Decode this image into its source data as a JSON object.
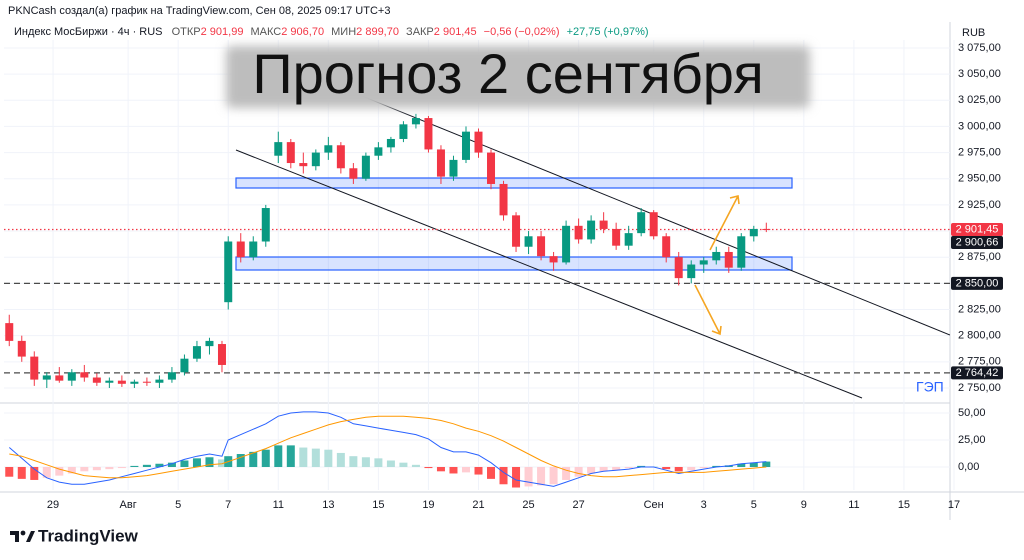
{
  "header": {
    "attribution": "PKNCash создал(а) график на TradingView.com, Сен 08, 2025 09:17 UTC+3",
    "symbol": "Индекс МосБиржи · 4ч · RUS",
    "ohlc": [
      {
        "label": "ОТКР",
        "value": "2 901,99"
      },
      {
        "label": "МАКС",
        "value": "2 906,70"
      },
      {
        "label": "МИН",
        "value": "2 899,70"
      },
      {
        "label": "ЗАКР",
        "value": "2 901,45"
      }
    ],
    "change": "−0,56 (−0,02%)",
    "change_since": "+27,75 (+0,97%)",
    "currency": "RUB"
  },
  "footer": {
    "brand": "TradingView"
  },
  "chart_data": [
    {
      "type": "candlestick",
      "title": "Прогноз 2 сентября",
      "annotation": "ГЭП",
      "up_color": "#089981",
      "down_color": "#f23645",
      "grid": true,
      "x": [
        -1.75,
        -1.25,
        -0.75,
        -0.25,
        0.25,
        0.75,
        1.25,
        1.75,
        2.25,
        2.75,
        3.25,
        3.75,
        4.25,
        4.75,
        5.25,
        5.75,
        6.25,
        6.75,
        7,
        7.5,
        8,
        8.5,
        9,
        9.5,
        10,
        10.5,
        11,
        11.5,
        12,
        12.5,
        13,
        13.5,
        14,
        14.5,
        15,
        15.5,
        16,
        16.5,
        17,
        17.5,
        18,
        18.5,
        19,
        19.5,
        20,
        20.5,
        21,
        21.5,
        22,
        22.5,
        23,
        23.5,
        24,
        24.5,
        25,
        25.5,
        26,
        26.5,
        27,
        27.5,
        28,
        28.5
      ],
      "open": [
        2812,
        2795,
        2780,
        2758,
        2762,
        2757,
        2765,
        2760,
        2755,
        2757,
        2754,
        2756,
        2755,
        2758,
        2765,
        2778,
        2790,
        2792,
        2832,
        2890,
        2875,
        2890,
        2972,
        2985,
        2965,
        2962,
        2975,
        2982,
        2960,
        2950,
        2972,
        2980,
        2988,
        3002,
        3008,
        2978,
        2952,
        2968,
        2995,
        2975,
        2945,
        2915,
        2885,
        2895,
        2876,
        2870,
        2905,
        2892,
        2910,
        2902,
        2886,
        2898,
        2918,
        2895,
        2875,
        2855,
        2868,
        2872,
        2880,
        2865,
        2895,
        2902
      ],
      "high": [
        2820,
        2800,
        2785,
        2765,
        2770,
        2768,
        2772,
        2764,
        2760,
        2762,
        2758,
        2760,
        2762,
        2770,
        2782,
        2795,
        2798,
        2795,
        2895,
        2898,
        2895,
        2925,
        2995,
        2988,
        2975,
        2978,
        2990,
        2985,
        2965,
        2975,
        2985,
        2990,
        3005,
        3012,
        3010,
        2982,
        2972,
        3000,
        2998,
        2978,
        2948,
        2918,
        2900,
        2900,
        2880,
        2910,
        2912,
        2915,
        2918,
        2908,
        2905,
        2922,
        2920,
        2898,
        2880,
        2872,
        2875,
        2885,
        2885,
        2898,
        2905,
        2908
      ],
      "low": [
        2790,
        2775,
        2752,
        2750,
        2755,
        2752,
        2756,
        2752,
        2750,
        2751,
        2750,
        2752,
        2750,
        2755,
        2762,
        2775,
        2782,
        2765,
        2825,
        2870,
        2872,
        2885,
        2965,
        2960,
        2955,
        2958,
        2968,
        2955,
        2945,
        2948,
        2968,
        2975,
        2985,
        2998,
        2975,
        2945,
        2948,
        2965,
        2970,
        2940,
        2910,
        2880,
        2878,
        2872,
        2862,
        2868,
        2888,
        2888,
        2898,
        2882,
        2882,
        2895,
        2892,
        2870,
        2848,
        2850,
        2860,
        2868,
        2860,
        2862,
        2890,
        2899
      ],
      "close": [
        2795,
        2780,
        2758,
        2762,
        2757,
        2765,
        2760,
        2755,
        2757,
        2754,
        2756,
        2755,
        2758,
        2765,
        2778,
        2790,
        2795,
        2772,
        2890,
        2875,
        2890,
        2922,
        2985,
        2965,
        2962,
        2975,
        2982,
        2960,
        2950,
        2972,
        2980,
        2988,
        3002,
        3008,
        2978,
        2952,
        2968,
        2995,
        2975,
        2945,
        2915,
        2885,
        2895,
        2876,
        2870,
        2905,
        2892,
        2910,
        2902,
        2886,
        2898,
        2918,
        2895,
        2875,
        2855,
        2868,
        2872,
        2880,
        2865,
        2895,
        2902,
        2901.45
      ],
      "xlim": [
        -1.96,
        35.84
      ],
      "xticks": [
        {
          "value": 0,
          "label": "29"
        },
        {
          "value": 3,
          "label": "Авг"
        },
        5,
        7,
        {
          "value": 9,
          "label": "11"
        },
        {
          "value": 11,
          "label": "13"
        },
        {
          "value": 13,
          "label": "15"
        },
        {
          "value": 15,
          "label": "19"
        },
        {
          "value": 17,
          "label": "21"
        },
        {
          "value": 19,
          "label": "25"
        },
        {
          "value": 21,
          "label": "27"
        },
        {
          "value": 24,
          "label": "Сен"
        },
        {
          "value": 26,
          "label": "3"
        },
        {
          "value": 28,
          "label": "5"
        },
        {
          "value": 30,
          "label": "9"
        },
        {
          "value": 32,
          "label": "11"
        },
        {
          "value": 34,
          "label": "15"
        },
        {
          "value": 36,
          "label": "17"
        }
      ],
      "ylim": [
        2736.6,
        3082.6
      ],
      "yticks": [
        {
          "value": 3075,
          "label": "3 075,00"
        },
        {
          "value": 3050,
          "label": "3 050,00"
        },
        {
          "value": 3025,
          "label": "3 025,00"
        },
        {
          "value": 3000,
          "label": "3 000,00"
        },
        {
          "value": 2975,
          "label": "2 975,00"
        },
        {
          "value": 2950,
          "label": "2 950,00"
        },
        {
          "value": 2925,
          "label": "2 925,00"
        },
        {
          "value": 2900,
          "label": "2 900,00"
        },
        {
          "value": 2875,
          "label": "2 875,00"
        },
        {
          "value": 2850,
          "label": "2 850,00"
        },
        {
          "value": 2825,
          "label": "2 825,00"
        },
        {
          "value": 2800,
          "label": "2 800,00"
        },
        {
          "value": 2775,
          "label": "2 775,00"
        },
        {
          "value": 2750,
          "label": "2 750,00"
        }
      ],
      "price_lines": [
        {
          "value": 2901.45,
          "label": "2 901,45",
          "color": "#f23645",
          "style": "dotted"
        },
        {
          "value": 2900.66,
          "label": "2 900,66",
          "color": "#131722",
          "line": false
        },
        {
          "value": 2850,
          "label": "2 850,00",
          "color": "#131722",
          "style": "dashed"
        },
        {
          "value": 2764.42,
          "label": "2 764,42",
          "color": "#131722",
          "style": "dashed"
        }
      ]
    },
    {
      "type": "macd",
      "grid": true,
      "x": [
        -1.75,
        -1.25,
        -0.75,
        -0.25,
        0.25,
        0.75,
        1.25,
        1.75,
        2.25,
        2.75,
        3.25,
        3.75,
        4.25,
        4.75,
        5.25,
        5.75,
        6.25,
        6.75,
        7,
        7.5,
        8,
        8.5,
        9,
        9.5,
        10,
        10.5,
        11,
        11.5,
        12,
        12.5,
        13,
        13.5,
        14,
        14.5,
        15,
        15.5,
        16,
        16.5,
        17,
        17.5,
        18,
        18.5,
        19,
        19.5,
        20,
        20.5,
        21,
        21.5,
        22,
        22.5,
        23,
        23.5,
        24,
        24.5,
        25,
        25.5,
        26,
        26.5,
        27,
        27.5,
        28,
        28.5
      ],
      "histogram": {
        "values": [
          -9,
          -11,
          -12,
          -10,
          -8,
          -6,
          -4,
          -3,
          -2,
          -1,
          1,
          2,
          3,
          4,
          6,
          8,
          9,
          7,
          10,
          12,
          14,
          16,
          20,
          20,
          18,
          17,
          16,
          13,
          10,
          9,
          8,
          6,
          4,
          2,
          -1,
          -4,
          -6,
          -5,
          -7,
          -11,
          -16,
          -19,
          -18,
          -17,
          -16,
          -12,
          -9,
          -6,
          -4,
          -3,
          -1,
          1,
          0.5,
          -2,
          -4,
          -3,
          -1,
          1,
          1.5,
          3,
          4,
          5
        ],
        "colors": {
          "pos_up": "#26a69a",
          "pos_down": "#b2dfdb",
          "neg_down": "#ff5252",
          "neg_up": "#ffcdd2"
        }
      },
      "series": [
        {
          "color": "#2962ff",
          "values": [
            18,
            8,
            -2,
            -10,
            -14,
            -16,
            -16,
            -14,
            -12,
            -9,
            -6,
            -3,
            0,
            3,
            7,
            10,
            12,
            10,
            25,
            30,
            35,
            40,
            47,
            50,
            51,
            51,
            50,
            46,
            40,
            38,
            36,
            34,
            32,
            30,
            26,
            18,
            14,
            14,
            11,
            4,
            -5,
            -12,
            -14,
            -16,
            -18,
            -14,
            -10,
            -6,
            -4,
            -3,
            -2,
            0,
            0,
            -3,
            -6,
            -4,
            -2,
            0,
            1,
            3,
            4,
            5
          ]
        },
        {
          "color": "#ff9800",
          "values": [
            12,
            10,
            6,
            2,
            -2,
            -5,
            -8,
            -9,
            -10,
            -10,
            -9,
            -8,
            -6,
            -4,
            -2,
            0,
            2,
            3,
            5,
            9,
            13,
            17,
            22,
            27,
            31,
            35,
            39,
            42,
            44,
            46,
            47,
            47,
            47,
            46,
            45,
            43,
            40,
            36,
            33,
            29,
            24,
            18,
            12,
            6,
            1,
            -3,
            -6,
            -8,
            -9,
            -9,
            -8,
            -7,
            -6,
            -5,
            -5,
            -5,
            -5,
            -4,
            -3,
            -2,
            -1,
            0
          ]
        }
      ],
      "ylim": [
        -21.3,
        58.3
      ],
      "yticks": [
        {
          "value": 50,
          "label": "50,00"
        },
        {
          "value": 25,
          "label": "25,00"
        },
        {
          "value": 0,
          "label": "0,00"
        }
      ]
    }
  ]
}
